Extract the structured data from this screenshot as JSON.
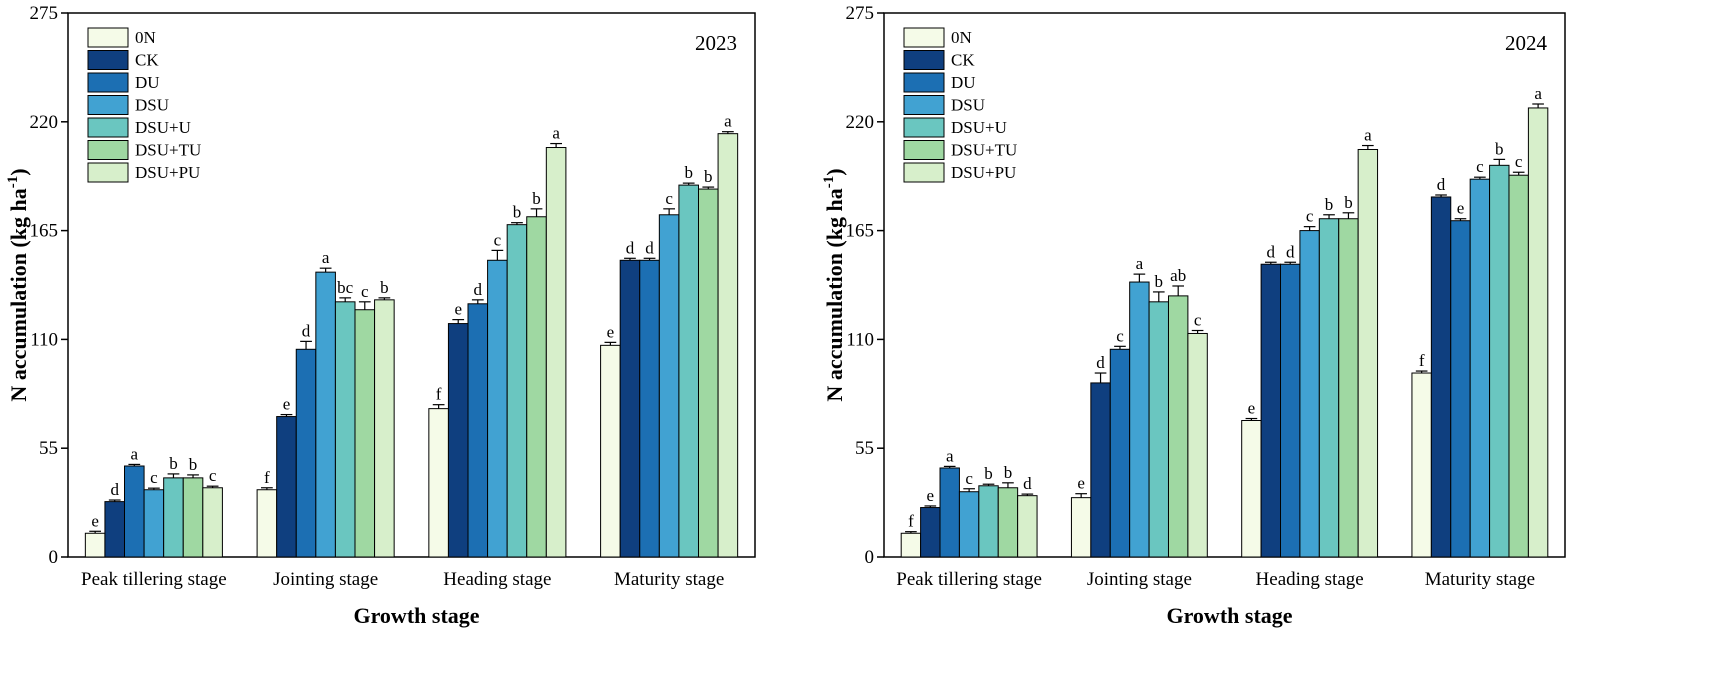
{
  "colors": {
    "0N": "#f5fbe8",
    "CK": "#0f3f7f",
    "DU": "#1c6fb3",
    "DSU": "#41a2d2",
    "DSU+U": "#6ac6c0",
    "DSU+TU": "#9fd8a2",
    "DSU+PU": "#d7efcb"
  },
  "chart_data": [
    {
      "type": "bar",
      "title": "2023",
      "xlabel": "Growth stage",
      "ylabel": "N accumulation (kg ha",
      "ylabel_sup": "-1",
      "ylabel_close": ")",
      "ylim": [
        0,
        275
      ],
      "yticks": [
        0,
        55,
        110,
        165,
        220,
        275
      ],
      "legend_position": "top-left",
      "categories": [
        "Peak tillering stage",
        "Jointing stage",
        "Heading stage",
        "Maturity stage"
      ],
      "series": [
        {
          "name": "0N",
          "values": [
            12,
            34,
            75,
            107
          ],
          "errors": [
            1,
            1,
            2,
            1.5
          ],
          "labels": [
            "e",
            "f",
            "f",
            "e"
          ]
        },
        {
          "name": "CK",
          "values": [
            28,
            71,
            118,
            150
          ],
          "errors": [
            0.8,
            1,
            2,
            1
          ],
          "labels": [
            "d",
            "e",
            "e",
            "d"
          ]
        },
        {
          "name": "DU",
          "values": [
            46,
            105,
            128,
            150
          ],
          "errors": [
            0.8,
            4,
            2,
            1
          ],
          "labels": [
            "a",
            "d",
            "d",
            "d"
          ]
        },
        {
          "name": "DSU",
          "values": [
            34,
            144,
            150,
            173
          ],
          "errors": [
            0.8,
            2,
            5,
            3
          ],
          "labels": [
            "c",
            "a",
            "c",
            "c"
          ]
        },
        {
          "name": "DSU+U",
          "values": [
            40,
            129,
            168,
            188
          ],
          "errors": [
            2,
            2,
            1,
            1
          ],
          "labels": [
            "b",
            "bc",
            "b",
            "b"
          ]
        },
        {
          "name": "DSU+TU",
          "values": [
            40,
            125,
            172,
            186
          ],
          "errors": [
            1.5,
            4,
            4,
            1
          ],
          "labels": [
            "b",
            "c",
            "b",
            "b"
          ]
        },
        {
          "name": "DSU+PU",
          "values": [
            35,
            130,
            207,
            214
          ],
          "errors": [
            0.8,
            1,
            2,
            1
          ],
          "labels": [
            "c",
            "b",
            "a",
            "a"
          ]
        }
      ]
    },
    {
      "type": "bar",
      "title": "2024",
      "xlabel": "Growth stage",
      "ylabel": "N accumulation (kg ha",
      "ylabel_sup": "-1",
      "ylabel_close": ")",
      "ylim": [
        0,
        275
      ],
      "yticks": [
        0,
        55,
        110,
        165,
        220,
        275
      ],
      "legend_position": "top-left",
      "categories": [
        "Peak tillering stage",
        "Jointing stage",
        "Heading stage",
        "Maturity stage"
      ],
      "series": [
        {
          "name": "0N",
          "values": [
            12,
            30,
            69,
            93
          ],
          "errors": [
            0.8,
            2,
            1,
            1
          ],
          "labels": [
            "f",
            "e",
            "e",
            "f"
          ]
        },
        {
          "name": "CK",
          "values": [
            25,
            88,
            148,
            182
          ],
          "errors": [
            0.8,
            5,
            1,
            1
          ],
          "labels": [
            "e",
            "d",
            "d",
            "d"
          ]
        },
        {
          "name": "DU",
          "values": [
            45,
            105,
            148,
            170
          ],
          "errors": [
            0.8,
            1.5,
            1,
            1
          ],
          "labels": [
            "a",
            "c",
            "d",
            "e"
          ]
        },
        {
          "name": "DSU",
          "values": [
            33,
            139,
            165,
            191
          ],
          "errors": [
            1.5,
            4,
            2,
            1
          ],
          "labels": [
            "c",
            "a",
            "c",
            "c"
          ]
        },
        {
          "name": "DSU+U",
          "values": [
            36,
            129,
            171,
            198
          ],
          "errors": [
            0.8,
            5,
            2,
            3
          ],
          "labels": [
            "b",
            "b",
            "b",
            "b"
          ]
        },
        {
          "name": "DSU+TU",
          "values": [
            35,
            132,
            171,
            193
          ],
          "errors": [
            2.5,
            5,
            3,
            1.5
          ],
          "labels": [
            "b",
            "ab",
            "b",
            "c"
          ]
        },
        {
          "name": "DSU+PU",
          "values": [
            31,
            113,
            206,
            227
          ],
          "errors": [
            0.8,
            1.5,
            2,
            2
          ],
          "labels": [
            "d",
            "c",
            "a",
            "a"
          ]
        }
      ]
    }
  ]
}
